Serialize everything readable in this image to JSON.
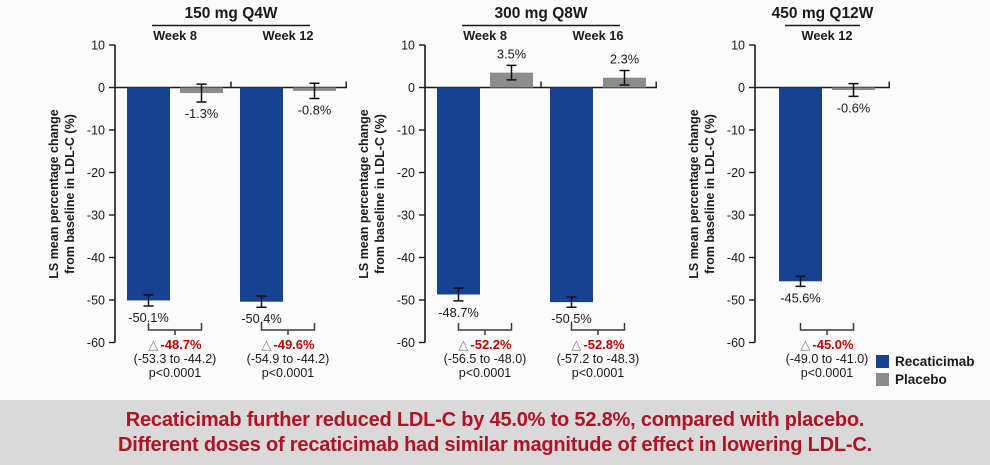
{
  "figure": {
    "background": "#FBFBFB",
    "axis_color": "#1A1A1A"
  },
  "colors": {
    "recaticimab": "#17428F",
    "placebo": "#8C8C8C",
    "delta_red": "#C00000",
    "triangle": "#7F7F7F",
    "text": "#1A1A1A"
  },
  "legend": {
    "items": [
      {
        "label": "Recaticimab",
        "color": "#17428F"
      },
      {
        "label": "Placebo",
        "color": "#8C8C8C"
      }
    ]
  },
  "banner": {
    "line1": "Recaticimab further reduced LDL-C by 45.0% to 52.8%, compared with placebo.",
    "line2": "Different doses of recaticimab had similar magnitude of effect in lowering LDL-C.",
    "text_color": "#B01226",
    "background": "#D9D9D9"
  },
  "chart_data": [
    {
      "type": "bar",
      "title": "150 mg Q4W",
      "ylabel_line1": "LS mean percentage change",
      "ylabel_line2": "from baseline in LDL-C (%)",
      "ylim": [
        -60,
        10
      ],
      "yticks": [
        10,
        0,
        -10,
        -20,
        -30,
        -40,
        -50,
        -60
      ],
      "series_names": [
        "Recaticimab",
        "Placebo"
      ],
      "groups": [
        {
          "label": "Week 8",
          "recaticimab": {
            "value": -50.1,
            "err": 1.3,
            "label": "-50.1%"
          },
          "placebo": {
            "value": -1.3,
            "err": 2.1,
            "label": "-1.3%"
          },
          "delta": {
            "value": -48.7,
            "label": "-48.7%",
            "ci": "(-53.3 to -44.2)",
            "p": "p<0.0001"
          }
        },
        {
          "label": "Week 12",
          "recaticimab": {
            "value": -50.4,
            "err": 1.3,
            "label": "-50.4%"
          },
          "placebo": {
            "value": -0.8,
            "err": 1.8,
            "label": "-0.8%"
          },
          "delta": {
            "value": -49.6,
            "label": "-49.6%",
            "ci": "(-54.9 to -44.2)",
            "p": "p<0.0001"
          }
        }
      ]
    },
    {
      "type": "bar",
      "title": "300 mg Q8W",
      "ylabel_line1": "LS mean percentage change",
      "ylabel_line2": "from baseline in LDL-C (%)",
      "ylim": [
        -60,
        10
      ],
      "yticks": [
        10,
        0,
        -10,
        -20,
        -30,
        -40,
        -50,
        -60
      ],
      "series_names": [
        "Recaticimab",
        "Placebo"
      ],
      "groups": [
        {
          "label": "Week 8",
          "recaticimab": {
            "value": -48.7,
            "err": 1.5,
            "label": "-48.7%"
          },
          "placebo": {
            "value": 3.5,
            "err": 1.7,
            "label": "3.5%"
          },
          "delta": {
            "value": -52.2,
            "label": "-52.2%",
            "ci": "(-56.5 to -48.0)",
            "p": "p<0.0001"
          }
        },
        {
          "label": "Week 16",
          "recaticimab": {
            "value": -50.5,
            "err": 1.2,
            "label": "-50.5%"
          },
          "placebo": {
            "value": 2.3,
            "err": 1.7,
            "label": "2.3%"
          },
          "delta": {
            "value": -52.8,
            "label": "-52.8%",
            "ci": "(-57.2 to -48.3)",
            "p": "p<0.0001"
          }
        }
      ]
    },
    {
      "type": "bar",
      "title": "450 mg Q12W",
      "ylabel_line1": "LS mean percentage change",
      "ylabel_line2": "from baseline in LDL-C (%)",
      "ylim": [
        -60,
        10
      ],
      "yticks": [
        10,
        0,
        -10,
        -20,
        -30,
        -40,
        -50,
        -60
      ],
      "series_names": [
        "Recaticimab",
        "Placebo"
      ],
      "groups": [
        {
          "label": "Week 12",
          "recaticimab": {
            "value": -45.6,
            "err": 1.2,
            "label": "-45.6%"
          },
          "placebo": {
            "value": -0.6,
            "err": 1.5,
            "label": "-0.6%"
          },
          "delta": {
            "value": -45.0,
            "label": "-45.0%",
            "ci": "(-49.0 to -41.0)",
            "p": "p<0.0001"
          }
        }
      ]
    }
  ]
}
